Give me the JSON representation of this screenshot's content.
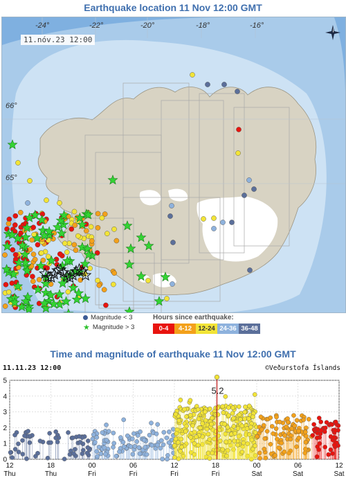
{
  "map": {
    "title": "Earthquake location   11 Nov 12:00 GMT",
    "date_label": "11.nóv.23  12:00",
    "lon_labels": [
      "-24°",
      "-22°",
      "-20°",
      "-18°",
      "-16°"
    ],
    "lat_labels": [
      "66°",
      "65°"
    ],
    "compass_icon": "north-arrow-icon",
    "colors": {
      "sea_deep": "#7fb0e0",
      "sea_mid": "#a9cbea",
      "sea_shallow": "#cde2f4",
      "land": "#d8d3c3",
      "glacier": "#ffffff",
      "grid": "#a8a8a8"
    }
  },
  "legend": {
    "small_label": "Magnitude < 3",
    "large_label": "Magnitude > 3",
    "hours_title": "Hours since earthquake:",
    "hour_bins": [
      {
        "label": "0-4",
        "color": "#e8140f",
        "text_color": "#ffffff"
      },
      {
        "label": "4-12",
        "color": "#f3a11b",
        "text_color": "#ffffff"
      },
      {
        "label": "12-24",
        "color": "#f2e437",
        "text_color": "#333333"
      },
      {
        "label": "24-36",
        "color": "#8eb2dd",
        "text_color": "#ffffff"
      },
      {
        "label": "36-48",
        "color": "#5b6f9a",
        "text_color": "#ffffff"
      }
    ]
  },
  "chart": {
    "title": "Time and magnitude of earthquake   11 Nov 12:00 GMT",
    "date_label": "11.11.23 12:00",
    "credit": "©Veðurstofa Íslands",
    "max_label": "5.2"
  },
  "chart_data": {
    "type": "scatter",
    "x_ticks": [
      {
        "hour": "12",
        "day": "Thu"
      },
      {
        "hour": "18",
        "day": "Thu"
      },
      {
        "hour": "00",
        "day": "Fri"
      },
      {
        "hour": "06",
        "day": "Fri"
      },
      {
        "hour": "12",
        "day": "Fri"
      },
      {
        "hour": "18",
        "day": "Fri"
      },
      {
        "hour": "00",
        "day": "Sat"
      },
      {
        "hour": "06",
        "day": "Sat"
      },
      {
        "hour": "12",
        "day": "Sat"
      }
    ],
    "xlim_hours": [
      0,
      48
    ],
    "ylim": [
      0,
      5
    ],
    "y_ticks": [
      0,
      1,
      2,
      3,
      4,
      5
    ],
    "grid": true,
    "max_event": {
      "hours": 30.2,
      "magnitude": 5.2
    },
    "series": [
      {
        "hour_bin": "36-48",
        "range": [
          0,
          12
        ]
      },
      {
        "hour_bin": "24-36",
        "range": [
          12,
          24
        ]
      },
      {
        "hour_bin": "12-24",
        "range": [
          24,
          36
        ]
      },
      {
        "hour_bin": "4-12",
        "range": [
          36,
          44
        ]
      },
      {
        "hour_bin": "0-4",
        "range": [
          44,
          48
        ]
      }
    ]
  }
}
